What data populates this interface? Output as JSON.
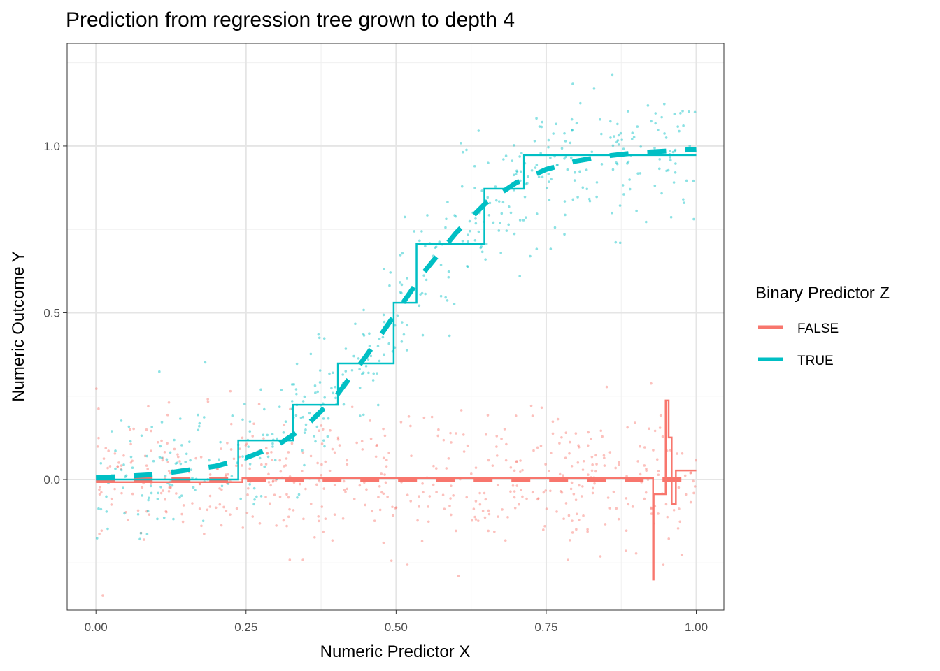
{
  "chart_data": {
    "type": "line",
    "title": "Prediction from regression tree grown to depth 4",
    "xlabel": "Numeric Predictor X",
    "ylabel": "Numeric Outcome Y",
    "xlim": [
      -0.048,
      1.046
    ],
    "ylim": [
      -0.392,
      1.308
    ],
    "xticks": [
      {
        "v": 0,
        "label": "0.00"
      },
      {
        "v": 0.25,
        "label": "0.25"
      },
      {
        "v": 0.5,
        "label": "0.50"
      },
      {
        "v": 0.75,
        "label": "0.75"
      },
      {
        "v": 1,
        "label": "1.00"
      }
    ],
    "yticks": [
      {
        "v": 0,
        "label": "0.0"
      },
      {
        "v": 0.5,
        "label": "0.5"
      },
      {
        "v": 1,
        "label": "1.0"
      }
    ],
    "grid": true,
    "legend": {
      "title": "Binary Predictor Z",
      "placement": "right",
      "entries": [
        {
          "label": "FALSE",
          "color": "#F8766D"
        },
        {
          "label": "TRUE",
          "color": "#00BFC4"
        }
      ]
    },
    "series": [
      {
        "name": "FALSE",
        "color": "#F8766D",
        "tree_steps": [
          [
            0,
            -0.008
          ],
          [
            0.244,
            -0.008
          ],
          [
            0.244,
            0.004
          ],
          [
            0.928,
            0.004
          ],
          [
            0.928,
            -0.3
          ],
          [
            0.929,
            -0.3
          ],
          [
            0.929,
            -0.044
          ],
          [
            0.949,
            -0.044
          ],
          [
            0.949,
            0.237
          ],
          [
            0.954,
            0.237
          ],
          [
            0.954,
            0.126
          ],
          [
            0.959,
            0.126
          ],
          [
            0.959,
            -0.074
          ],
          [
            0.966,
            -0.074
          ],
          [
            0.966,
            0.027
          ],
          [
            1,
            0.027
          ]
        ],
        "true_curve": [
          [
            0,
            0
          ],
          [
            1,
            0
          ]
        ],
        "scatter": {
          "n": 520,
          "x_range": [
            0,
            1
          ],
          "mean": 0,
          "sd": 0.1
        }
      },
      {
        "name": "TRUE",
        "color": "#00BFC4",
        "tree_steps": [
          [
            0,
            0
          ],
          [
            0.237,
            0
          ],
          [
            0.237,
            0.117
          ],
          [
            0.328,
            0.117
          ],
          [
            0.328,
            0.224
          ],
          [
            0.403,
            0.224
          ],
          [
            0.403,
            0.348
          ],
          [
            0.496,
            0.348
          ],
          [
            0.496,
            0.53
          ],
          [
            0.534,
            0.53
          ],
          [
            0.534,
            0.707
          ],
          [
            0.647,
            0.707
          ],
          [
            0.647,
            0.872
          ],
          [
            0.713,
            0.872
          ],
          [
            0.713,
            0.973
          ],
          [
            1,
            0.973
          ]
        ],
        "true_curve": [
          [
            0,
            0.005
          ],
          [
            0.1,
            0.015
          ],
          [
            0.2,
            0.04
          ],
          [
            0.25,
            0.065
          ],
          [
            0.3,
            0.1
          ],
          [
            0.35,
            0.16
          ],
          [
            0.4,
            0.25
          ],
          [
            0.45,
            0.37
          ],
          [
            0.5,
            0.5
          ],
          [
            0.55,
            0.63
          ],
          [
            0.6,
            0.74
          ],
          [
            0.65,
            0.83
          ],
          [
            0.7,
            0.89
          ],
          [
            0.75,
            0.93
          ],
          [
            0.8,
            0.955
          ],
          [
            0.85,
            0.97
          ],
          [
            0.9,
            0.98
          ],
          [
            1,
            0.99
          ]
        ],
        "scatter": {
          "n": 480,
          "x_range": [
            0,
            1
          ],
          "sd": 0.1
        }
      }
    ]
  }
}
